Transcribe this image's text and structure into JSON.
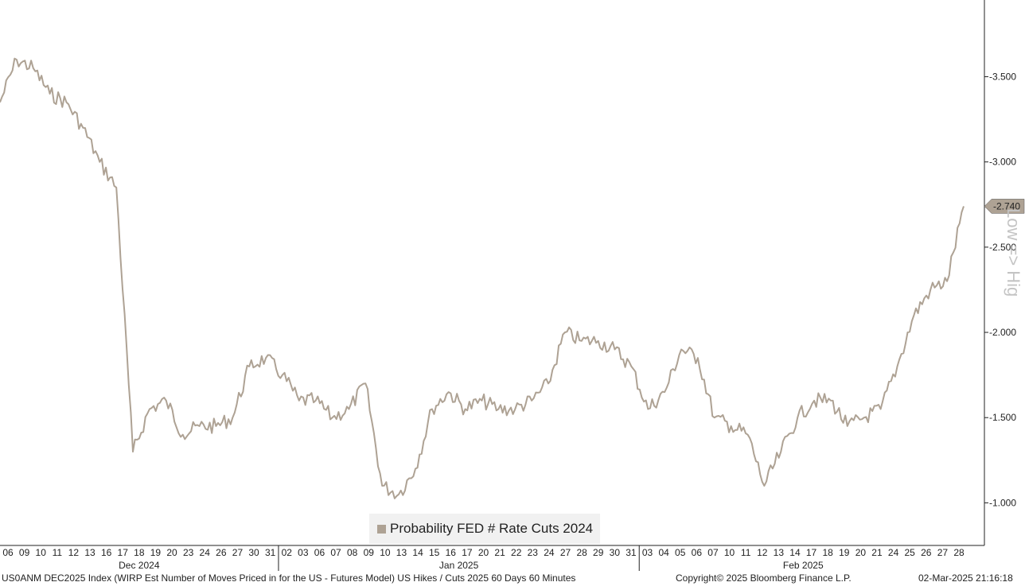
{
  "chart_data": {
    "type": "line",
    "ylim": [
      -0.75,
      -3.95
    ],
    "y_ticks": [
      "-3.500",
      "-3.000",
      "-2.500",
      "-2.000",
      "-1.500",
      "-1.000"
    ],
    "y_tick_values": [
      -3.5,
      -3.0,
      -2.5,
      -2.0,
      -1.5,
      -1.0
    ],
    "y_axis_title": "Low => Hig",
    "last_value_label": "-2.740",
    "last_value": -2.74,
    "days": [
      "06",
      "09",
      "10",
      "11",
      "12",
      "13",
      "16",
      "17",
      "18",
      "19",
      "20",
      "23",
      "24",
      "26",
      "27",
      "30",
      "31",
      "02",
      "03",
      "06",
      "07",
      "08",
      "09",
      "10",
      "13",
      "14",
      "15",
      "16",
      "17",
      "20",
      "21",
      "22",
      "23",
      "24",
      "27",
      "28",
      "29",
      "30",
      "31",
      "03",
      "04",
      "05",
      "06",
      "07",
      "10",
      "11",
      "12",
      "13",
      "14",
      "17",
      "18",
      "19",
      "20",
      "21",
      "24",
      "25",
      "26",
      "27",
      "28"
    ],
    "months": [
      "Dec 2024",
      "Jan 2025",
      "Feb 2025"
    ],
    "series": [
      {
        "name": "Probability FED # Rate Cuts 2024",
        "color": "#aea294",
        "values": [
          -3.35,
          -3.6,
          -3.55,
          -3.4,
          -3.35,
          -3.2,
          -3.0,
          -2.85,
          -1.3,
          -1.55,
          -1.6,
          -1.4,
          -1.45,
          -1.45,
          -1.5,
          -1.8,
          -1.85,
          -1.75,
          -1.6,
          -1.6,
          -1.5,
          -1.55,
          -1.7,
          -1.1,
          -1.05,
          -1.2,
          -1.55,
          -1.65,
          -1.55,
          -1.6,
          -1.55,
          -1.55,
          -1.6,
          -1.7,
          -2.0,
          -1.95,
          -1.95,
          -1.9,
          -1.8,
          -1.55,
          -1.65,
          -1.9,
          -1.85,
          -1.5,
          -1.45,
          -1.4,
          -1.1,
          -1.3,
          -1.5,
          -1.6,
          -1.6,
          -1.45,
          -1.5,
          -1.55,
          -1.8,
          -2.1,
          -2.25,
          -2.3,
          -2.74
        ]
      }
    ]
  },
  "legend": {
    "label": "Probability FED # Rate Cuts 2024"
  },
  "footer": {
    "left": "US0ANM DEC2025 Index (WIRP Est Number of Moves Priced in for the US - Futures Model) US Hikes / Cuts 2025 60 Days 60 Minutes",
    "center": "Copyright© 2025 Bloomberg Finance L.P.",
    "right": "02-Mar-2025 21:16:18"
  }
}
